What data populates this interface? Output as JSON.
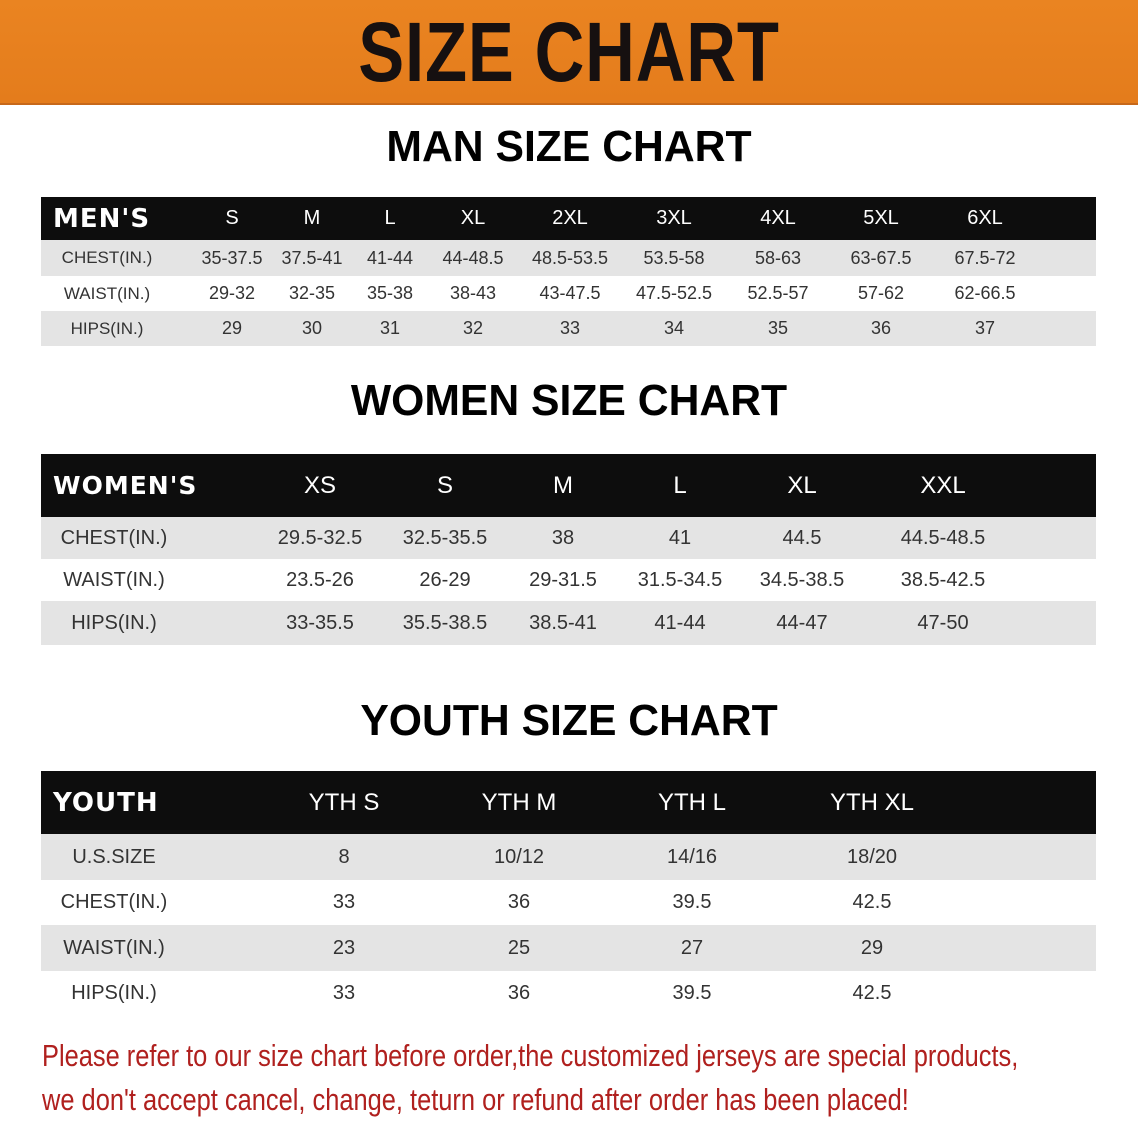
{
  "banner": {
    "title": "SIZE CHART",
    "color": "#e8801e"
  },
  "men": {
    "title": "MAN SIZE CHART",
    "header_label": "MEN'S",
    "sizes": [
      "S",
      "M",
      "L",
      "XL",
      "2XL",
      "3XL",
      "4XL",
      "5XL",
      "6XL"
    ],
    "rows": [
      {
        "label": "CHEST(IN.)",
        "values": [
          "35-37.5",
          "37.5-41",
          "41-44",
          "44-48.5",
          "48.5-53.5",
          "53.5-58",
          "58-63",
          "63-67.5",
          "67.5-72"
        ]
      },
      {
        "label": "WAIST(IN.)",
        "values": [
          "29-32",
          "32-35",
          "35-38",
          "38-43",
          "43-47.5",
          "47.5-52.5",
          "52.5-57",
          "57-62",
          "62-66.5"
        ]
      },
      {
        "label": "HIPS(IN.)",
        "values": [
          "29",
          "30",
          "31",
          "32",
          "33",
          "34",
          "35",
          "36",
          "37"
        ]
      }
    ]
  },
  "women": {
    "title": "WOMEN SIZE CHART",
    "header_label": "WOMEN'S",
    "sizes": [
      "XS",
      "S",
      "M",
      "L",
      "XL",
      "XXL"
    ],
    "rows": [
      {
        "label": "CHEST(IN.)",
        "values": [
          "29.5-32.5",
          "32.5-35.5",
          "38",
          "41",
          "44.5",
          "44.5-48.5"
        ]
      },
      {
        "label": "WAIST(IN.)",
        "values": [
          "23.5-26",
          "26-29",
          "29-31.5",
          "31.5-34.5",
          "34.5-38.5",
          "38.5-42.5"
        ]
      },
      {
        "label": "HIPS(IN.)",
        "values": [
          "33-35.5",
          "35.5-38.5",
          "38.5-41",
          "41-44",
          "44-47",
          "47-50"
        ]
      }
    ]
  },
  "youth": {
    "title": "YOUTH SIZE CHART",
    "header_label": "YOUTH",
    "sizes": [
      "YTH S",
      "YTH M",
      "YTH L",
      "YTH XL"
    ],
    "rows": [
      {
        "label": "U.S.SIZE",
        "values": [
          "8",
          "10/12",
          "14/16",
          "18/20"
        ]
      },
      {
        "label": "CHEST(IN.)",
        "values": [
          "33",
          "36",
          "39.5",
          "42.5"
        ]
      },
      {
        "label": "WAIST(IN.)",
        "values": [
          "23",
          "25",
          "27",
          "29"
        ]
      },
      {
        "label": "HIPS(IN.)",
        "values": [
          "33",
          "36",
          "39.5",
          "42.5"
        ]
      }
    ]
  },
  "footer": {
    "line1": "Please refer to our size chart before order,the customized jerseys are special products,",
    "line2": "we don't accept cancel, change, teturn or refund after order has been placed!",
    "color": "#b0201e"
  }
}
